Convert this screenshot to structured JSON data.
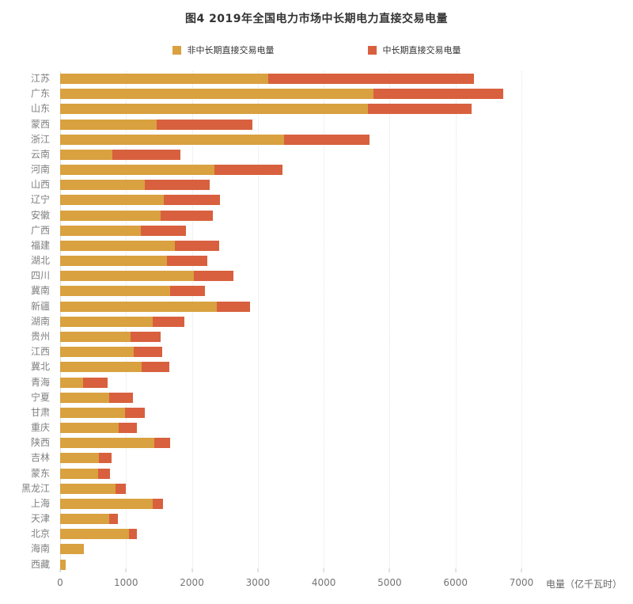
{
  "title": "图4 2019年全国电力市场中长期电力直接交易电量",
  "legend": [
    {
      "label": "非中长期直接交易电量",
      "color": "#D9A13F"
    },
    {
      "label": "中长期直接交易电量",
      "color": "#D8603E"
    }
  ],
  "x_axis": {
    "ticks": [
      "0",
      "1000",
      "2000",
      "3000",
      "4000",
      "5000",
      "6000",
      "7000"
    ],
    "unit_label": "电量（亿千瓦时）",
    "min": 0,
    "max": 7000
  },
  "chart_data": {
    "type": "bar",
    "orientation": "horizontal",
    "stacked": true,
    "title": "图4 2019年全国电力市场中长期电力直接交易电量",
    "xlabel": "电量（亿千瓦时）",
    "ylabel": "",
    "xlim": [
      0,
      7000
    ],
    "grid": true,
    "legend_position": "top",
    "categories": [
      "江苏",
      "广东",
      "山东",
      "蒙西",
      "浙江",
      "云南",
      "河南",
      "山西",
      "辽宁",
      "安徽",
      "广西",
      "福建",
      "湖北",
      "四川",
      "冀南",
      "新疆",
      "湖南",
      "贵州",
      "江西",
      "冀北",
      "青海",
      "宁夏",
      "甘肃",
      "重庆",
      "陕西",
      "吉林",
      "蒙东",
      "黑龙江",
      "上海",
      "天津",
      "北京",
      "海南",
      "西藏"
    ],
    "series": [
      {
        "name": "非中长期直接交易电量",
        "color": "#D9A13F",
        "values": [
          3160,
          4750,
          4665,
          1470,
          3400,
          790,
          2340,
          1280,
          1570,
          1520,
          1230,
          1740,
          1620,
          2030,
          1670,
          2380,
          1400,
          1065,
          1115,
          1240,
          350,
          750,
          990,
          890,
          1425,
          590,
          575,
          840,
          1405,
          750,
          1040,
          360,
          80
        ]
      },
      {
        "name": "中长期直接交易电量",
        "color": "#D8603E",
        "values": [
          3120,
          1980,
          1580,
          1450,
          1300,
          1035,
          1030,
          990,
          850,
          795,
          685,
          675,
          615,
          600,
          530,
          500,
          480,
          460,
          430,
          420,
          365,
          350,
          300,
          280,
          250,
          185,
          180,
          160,
          155,
          125,
          120,
          0,
          0
        ]
      }
    ]
  }
}
